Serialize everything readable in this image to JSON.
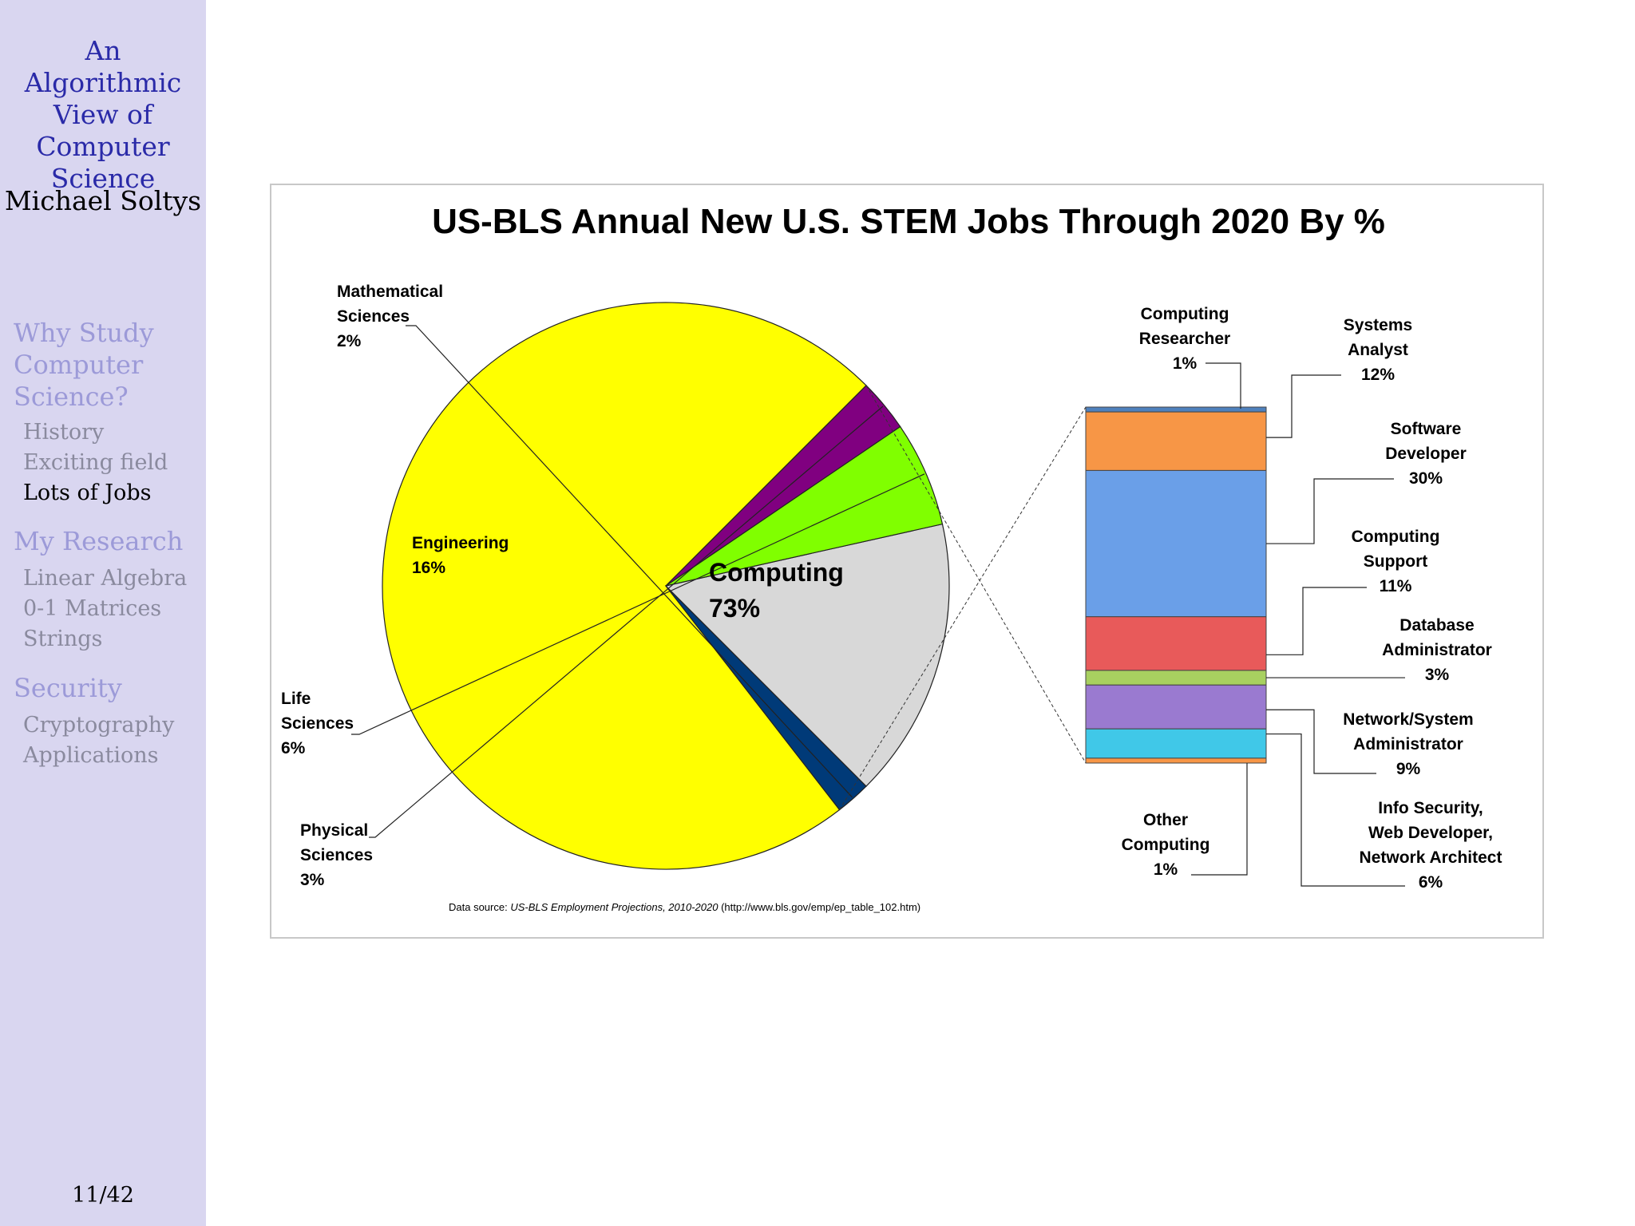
{
  "sidebar": {
    "deck_title": [
      "An Algorithmic",
      "View of",
      "Computer",
      "Science"
    ],
    "author": "Michael Soltys",
    "nav": [
      {
        "label": [
          "Why Study",
          "Computer",
          "Science?"
        ],
        "items": [
          {
            "label": "History",
            "current": false
          },
          {
            "label": "Exciting field",
            "current": false
          },
          {
            "label": "Lots of Jobs",
            "current": true
          }
        ]
      },
      {
        "label": [
          "My Research"
        ],
        "items": [
          {
            "label": "Linear Algebra",
            "current": false
          },
          {
            "label": "0-1 Matrices",
            "current": false
          },
          {
            "label": "Strings",
            "current": false
          }
        ]
      },
      {
        "label": [
          "Security"
        ],
        "items": [
          {
            "label": "Cryptography",
            "current": false
          },
          {
            "label": "Applications",
            "current": false
          }
        ]
      }
    ],
    "page_number": "11/42"
  },
  "chart_data": {
    "type": "pie",
    "title": "US-BLS Annual New U.S. STEM Jobs Through 2020 By %",
    "pie": {
      "slices": [
        {
          "label": [
            "Computing"
          ],
          "value": "73%",
          "percent": 73,
          "color": "#ffff00"
        },
        {
          "label": [
            "Mathematical",
            "Sciences"
          ],
          "value": "2%",
          "percent": 2,
          "color": "#003a78"
        },
        {
          "label": [
            "Engineering"
          ],
          "value": "16%",
          "percent": 16,
          "color": "#d8d8d8"
        },
        {
          "label": [
            "Life",
            "Sciences"
          ],
          "value": "6%",
          "percent": 6,
          "color": "#80ff00"
        },
        {
          "label": [
            "Physical",
            "Sciences"
          ],
          "value": "3%",
          "percent": 3,
          "color": "#800080"
        }
      ]
    },
    "breakdown": {
      "of": "Computing",
      "segments": [
        {
          "label": [
            "Computing",
            "Researcher"
          ],
          "value": "1%",
          "percent": 1,
          "color": "#4f81bd"
        },
        {
          "label": [
            "Systems",
            "Analyst"
          ],
          "value": "12%",
          "percent": 12,
          "color": "#f79646"
        },
        {
          "label": [
            "Software",
            "Developer"
          ],
          "value": "30%",
          "percent": 30,
          "color": "#6a9fe8"
        },
        {
          "label": [
            "Computing",
            "Support"
          ],
          "value": "11%",
          "percent": 11,
          "color": "#e85a5a"
        },
        {
          "label": [
            "Database",
            "Administrator"
          ],
          "value": "3%",
          "percent": 3,
          "color": "#a8d060"
        },
        {
          "label": [
            "Network/System",
            "Administrator"
          ],
          "value": "9%",
          "percent": 9,
          "color": "#9a7ad0"
        },
        {
          "label": [
            "Info Security,",
            "Web Developer,",
            "Network Architect"
          ],
          "value": "6%",
          "percent": 6,
          "color": "#40c8e8"
        },
        {
          "label": [
            "Other",
            "Computing"
          ],
          "value": "1%",
          "percent": 1,
          "color": "#f79646"
        }
      ]
    },
    "source_note": {
      "prefix": "Data source: ",
      "source": "US-BLS Employment Projections, 2010-2020",
      "url": " (http://www.bls.gov/emp/ep_table_102.htm)"
    }
  }
}
